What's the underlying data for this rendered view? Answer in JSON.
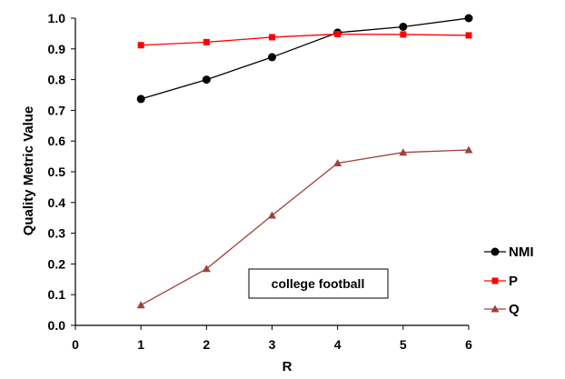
{
  "chart_data": {
    "type": "line",
    "xlabel": "R",
    "ylabel": "Quality Metric Value",
    "xlim": [
      0,
      6
    ],
    "ylim": [
      0.0,
      1.0
    ],
    "xticks": [
      "0",
      "1",
      "2",
      "3",
      "4",
      "5",
      "6"
    ],
    "yticks": [
      "0.0",
      "0.1",
      "0.2",
      "0.3",
      "0.4",
      "0.5",
      "0.6",
      "0.7",
      "0.8",
      "0.9",
      "1.0"
    ],
    "grid": false,
    "legend": "right",
    "annotation": "college football",
    "x": [
      1,
      2,
      3,
      4,
      5,
      6
    ],
    "series": [
      {
        "name": "NMI",
        "values": [
          0.737,
          0.8,
          0.873,
          0.953,
          0.972,
          1.0
        ],
        "color": "#000000",
        "marker": "circle"
      },
      {
        "name": "P",
        "values": [
          0.912,
          0.922,
          0.938,
          0.948,
          0.947,
          0.944
        ],
        "color": "#ff0000",
        "marker": "square"
      },
      {
        "name": "Q",
        "values": [
          0.066,
          0.184,
          0.358,
          0.528,
          0.563,
          0.571
        ],
        "color": "#a0403a",
        "marker": "triangle"
      }
    ]
  }
}
